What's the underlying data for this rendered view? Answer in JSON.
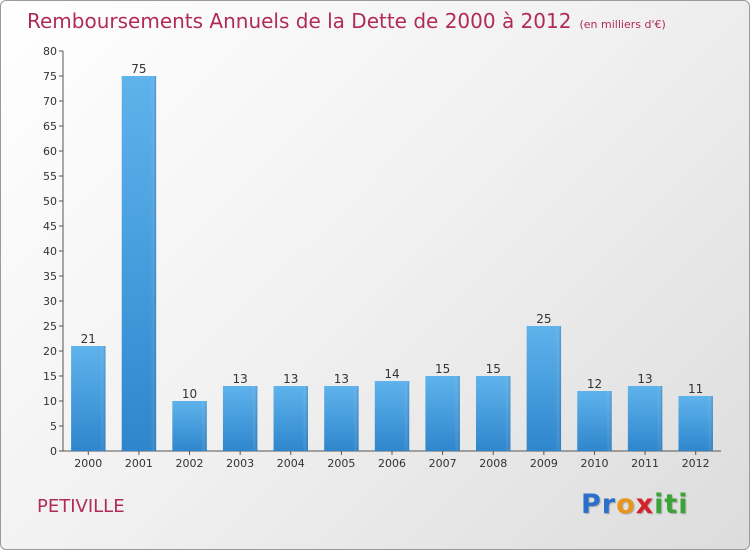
{
  "chart_data": {
    "type": "bar",
    "title": "Remboursements Annuels de la Dette de 2000 à 2012",
    "subtitle": "(en milliers d'€)",
    "categories": [
      "2000",
      "2001",
      "2002",
      "2003",
      "2004",
      "2005",
      "2006",
      "2007",
      "2008",
      "2009",
      "2010",
      "2011",
      "2012"
    ],
    "values": [
      21,
      75,
      10,
      13,
      13,
      13,
      14,
      15,
      15,
      25,
      12,
      13,
      11
    ],
    "ylim": [
      0,
      80
    ],
    "yticks": [
      0,
      5,
      10,
      15,
      20,
      25,
      30,
      35,
      40,
      45,
      50,
      55,
      60,
      65,
      70,
      75,
      80
    ],
    "xlabel": "",
    "ylabel": "",
    "grid": false,
    "bar_color": "#4a9fe0"
  },
  "footer": {
    "commune": "PETIVILLE",
    "logo": {
      "letters": [
        "P",
        "r",
        "o",
        "x",
        "i",
        "t",
        "i"
      ],
      "colors": [
        "#2a6fc9",
        "#2a6fc9",
        "#e8941a",
        "#d4212a",
        "#3aa335",
        "#3aa335",
        "#3aa335"
      ]
    }
  }
}
